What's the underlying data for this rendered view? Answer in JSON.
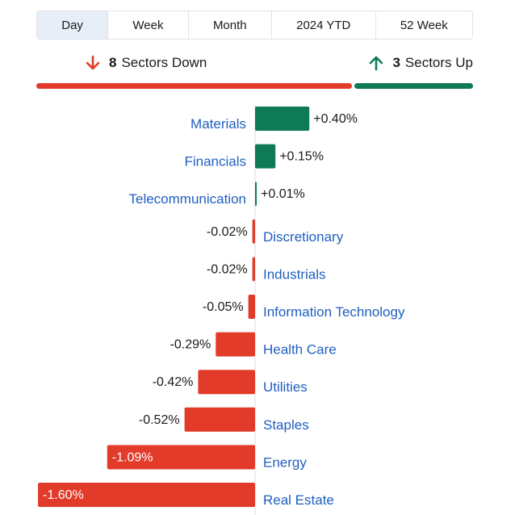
{
  "tabs": [
    {
      "label": "Day",
      "active": true
    },
    {
      "label": "Week",
      "active": false
    },
    {
      "label": "Month",
      "active": false
    },
    {
      "label": "2024 YTD",
      "active": false
    },
    {
      "label": "52 Week",
      "active": false
    }
  ],
  "summary": {
    "down_count": "8",
    "down_text": "Sectors Down",
    "up_count": "3",
    "up_text": "Sectors Up"
  },
  "colors": {
    "up": "#0f7b56",
    "down": "#e23b2a",
    "label": "#1f5fbf",
    "active_tab_bg": "#e8eef8"
  },
  "chart_data": {
    "type": "bar",
    "orientation": "horizontal",
    "categories": [
      "Materials",
      "Financials",
      "Telecommunication",
      "Discretionary",
      "Industrials",
      "Information Technology",
      "Health Care",
      "Utilities",
      "Staples",
      "Energy",
      "Real Estate"
    ],
    "values": [
      0.4,
      0.15,
      0.01,
      -0.02,
      -0.02,
      -0.05,
      -0.29,
      -0.42,
      -0.52,
      -1.09,
      -1.6
    ],
    "value_labels": [
      "+0.40%",
      "+0.15%",
      "+0.01%",
      "-0.02%",
      "-0.02%",
      "-0.05%",
      "-0.29%",
      "-0.42%",
      "-0.52%",
      "-1.09%",
      "-1.60%"
    ],
    "unit": "%"
  }
}
